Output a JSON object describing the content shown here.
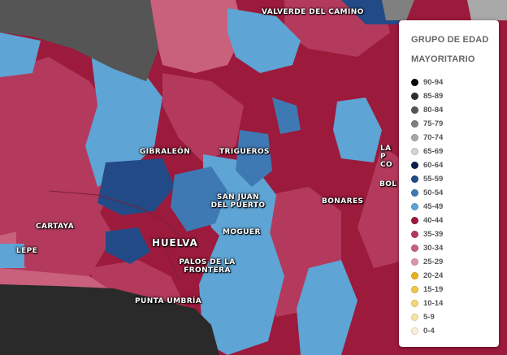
{
  "map": {
    "places": [
      {
        "name": "VALVERDE DEL CAMINO"
      },
      {
        "name": "GIBRALEÓN"
      },
      {
        "name": "TRIGUEROS"
      },
      {
        "name": "SAN JUAN DEL PUERTO"
      },
      {
        "name": "BONARES"
      },
      {
        "name": "LA P CO"
      },
      {
        "name": "BOLL"
      },
      {
        "name": "CARTAYA"
      },
      {
        "name": "LEPE"
      },
      {
        "name": "HUELVA"
      },
      {
        "name": "MOGUER"
      },
      {
        "name": "PALOS DE LA FRONTERA"
      },
      {
        "name": "PUNTA UMBRÍA"
      }
    ]
  },
  "legend": {
    "title_line1": "GRUPO DE EDAD",
    "title_line2": "MAYORITARIO",
    "items": [
      {
        "label": "90-94",
        "color": "#0a0a0a"
      },
      {
        "label": "85-89",
        "color": "#2e2e2e"
      },
      {
        "label": "80-84",
        "color": "#555555"
      },
      {
        "label": "75-79",
        "color": "#808080"
      },
      {
        "label": "70-74",
        "color": "#a8a8a8"
      },
      {
        "label": "65-69",
        "color": "#d4d4d4"
      },
      {
        "label": "60-64",
        "color": "#0c1f4a"
      },
      {
        "label": "55-59",
        "color": "#224a86"
      },
      {
        "label": "50-54",
        "color": "#3e79b4"
      },
      {
        "label": "45-49",
        "color": "#5ea4d4"
      },
      {
        "label": "40-44",
        "color": "#9c1a3c"
      },
      {
        "label": "35-39",
        "color": "#b33a5c"
      },
      {
        "label": "30-34",
        "color": "#c9607c"
      },
      {
        "label": "25-29",
        "color": "#dd97ac"
      },
      {
        "label": "20-24",
        "color": "#e9b220"
      },
      {
        "label": "15-19",
        "color": "#f0c746"
      },
      {
        "label": "10-14",
        "color": "#f5d776"
      },
      {
        "label": "5-9",
        "color": "#f8e5a6"
      },
      {
        "label": "0-4",
        "color": "#fbf0d4"
      }
    ]
  }
}
